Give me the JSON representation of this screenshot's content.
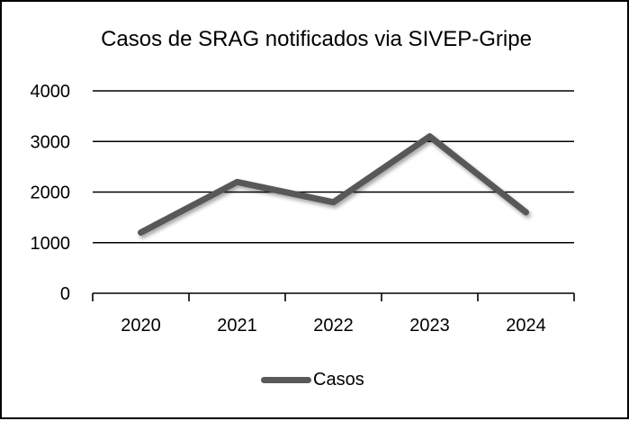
{
  "chart_data": {
    "type": "line",
    "title": "Casos de SRAG notificados via SIVEP-Gripe",
    "xlabel": "",
    "ylabel": "",
    "categories": [
      "2020",
      "2021",
      "2022",
      "2023",
      "2024"
    ],
    "series": [
      {
        "name": "Casos",
        "values": [
          1200,
          2200,
          1800,
          3100,
          1600
        ],
        "color": "#595959"
      }
    ],
    "ylim": [
      0,
      4000
    ],
    "yticks": [
      "0",
      "1000",
      "2000",
      "3000",
      "4000"
    ],
    "grid": true,
    "legend_position": "bottom"
  },
  "legend": {
    "label": "Casos"
  }
}
